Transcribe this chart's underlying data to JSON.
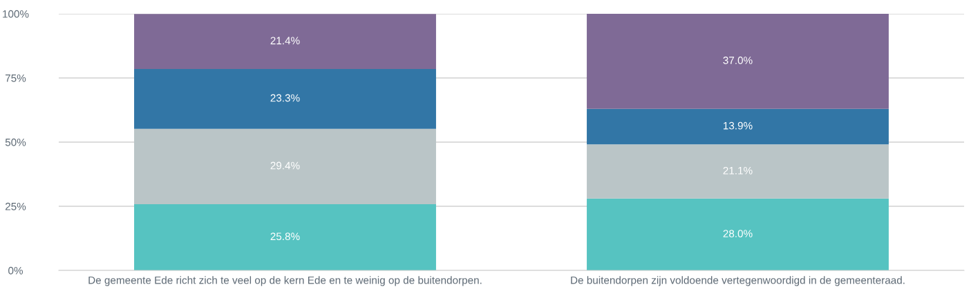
{
  "chart_data": {
    "type": "bar",
    "stacked": true,
    "categories": [
      "De gemeente Ede richt zich te veel op de kern Ede en te weinig op de buitendorpen.",
      "De buitendorpen zijn voldoende vertegenwoordigd in de gemeenteraad."
    ],
    "series": [
      {
        "color": "#56c3c1",
        "values": [
          25.8,
          28.0
        ],
        "value_labels": [
          "25.8%",
          "28.0%"
        ]
      },
      {
        "color": "#bac5c7",
        "values": [
          29.4,
          21.1
        ],
        "value_labels": [
          "29.4%",
          "21.1%"
        ]
      },
      {
        "color": "#3276a6",
        "values": [
          23.3,
          13.9
        ],
        "value_labels": [
          "23.3%",
          "13.9%"
        ]
      },
      {
        "color": "#7f6a96",
        "values": [
          21.4,
          37.0
        ],
        "value_labels": [
          "21.4%",
          "37.0%"
        ]
      }
    ],
    "ylim": [
      0,
      100
    ],
    "yticks": [
      {
        "value": 0,
        "label": "0%"
      },
      {
        "value": 25,
        "label": "25%"
      },
      {
        "value": 50,
        "label": "50%"
      },
      {
        "value": 75,
        "label": "75%"
      },
      {
        "value": 100,
        "label": "100%"
      }
    ],
    "grid": "y",
    "legend": false
  }
}
